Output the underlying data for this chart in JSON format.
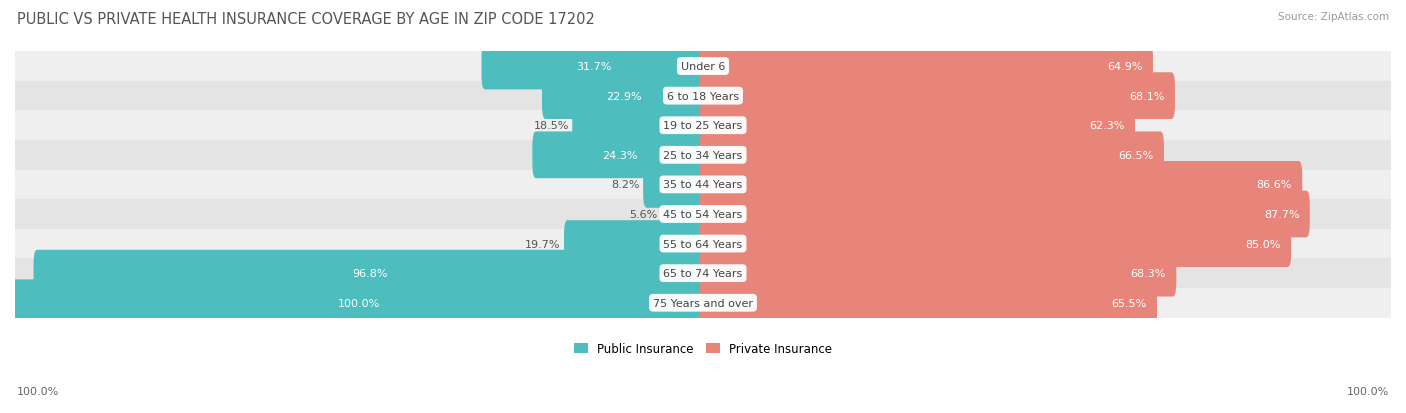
{
  "title": "PUBLIC VS PRIVATE HEALTH INSURANCE COVERAGE BY AGE IN ZIP CODE 17202",
  "source": "Source: ZipAtlas.com",
  "categories": [
    "Under 6",
    "6 to 18 Years",
    "19 to 25 Years",
    "25 to 34 Years",
    "35 to 44 Years",
    "45 to 54 Years",
    "55 to 64 Years",
    "65 to 74 Years",
    "75 Years and over"
  ],
  "public_values": [
    31.7,
    22.9,
    18.5,
    24.3,
    8.2,
    5.6,
    19.7,
    96.8,
    100.0
  ],
  "private_values": [
    64.9,
    68.1,
    62.3,
    66.5,
    86.6,
    87.7,
    85.0,
    68.3,
    65.5
  ],
  "public_color": "#4dbdbd",
  "private_color": "#e8857a",
  "public_label": "Public Insurance",
  "private_label": "Private Insurance",
  "row_bg_colors": [
    "#efefef",
    "#e4e4e4"
  ],
  "max_value": 100.0,
  "title_fontsize": 10.5,
  "label_fontsize": 8.0,
  "value_fontsize": 8.0,
  "background_color": "#ffffff",
  "axis_label_left": "100.0%",
  "axis_label_right": "100.0%"
}
